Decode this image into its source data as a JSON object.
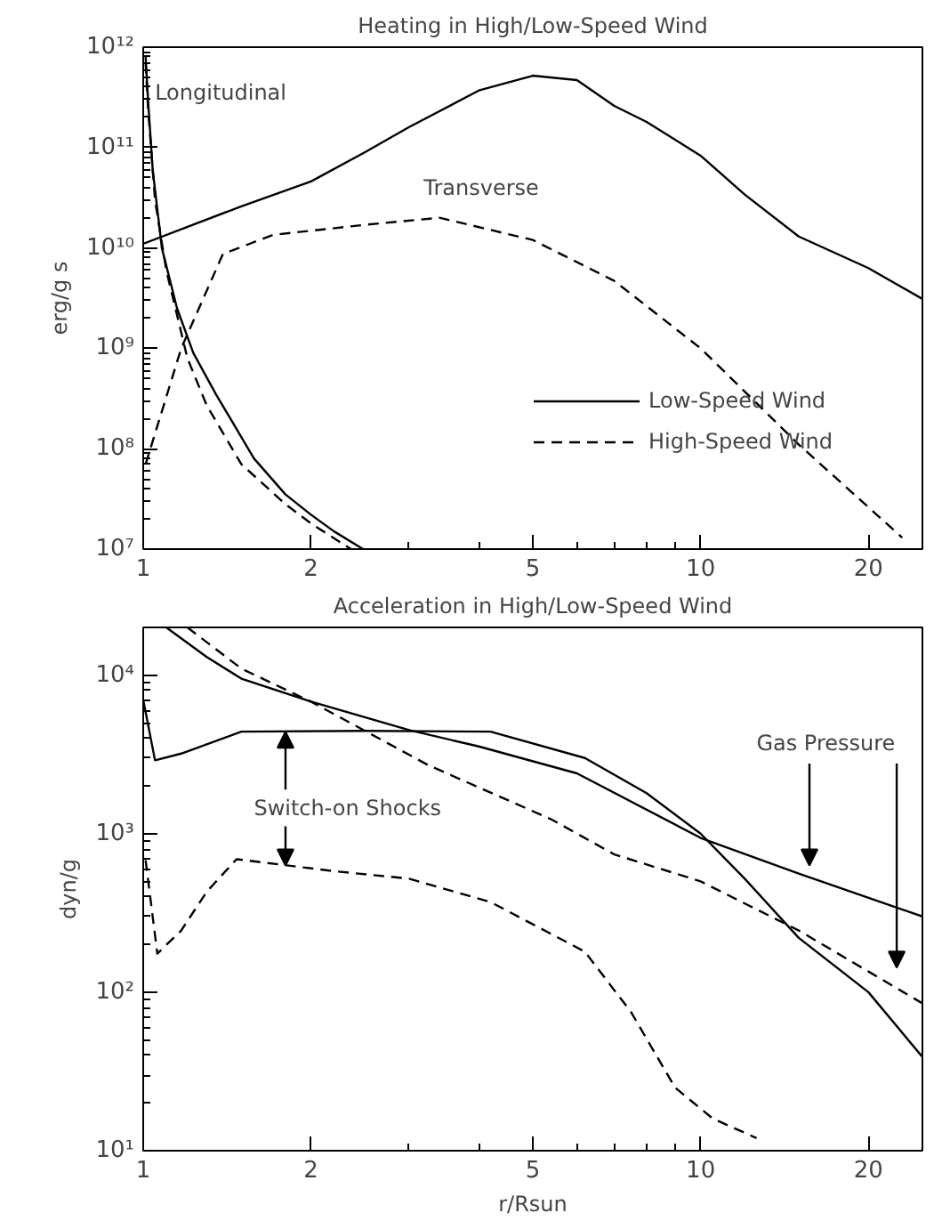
{
  "chart_data": [
    {
      "type": "line",
      "title": "Heating in High/Low-Speed Wind",
      "ylabel": "erg/g s",
      "log": "xy",
      "xlim": [
        1,
        25
      ],
      "ylim": [
        10000000.0,
        1000000000000.0
      ],
      "xticks": [
        1,
        2,
        5,
        10,
        20
      ],
      "yticks": [
        {
          "value": 10000000.0,
          "label": "10⁷"
        },
        {
          "value": 100000000.0,
          "label": "10⁸"
        },
        {
          "value": 1000000000.0,
          "label": "10⁹"
        },
        {
          "value": 10000000000.0,
          "label": "10¹⁰"
        },
        {
          "value": 100000000000.0,
          "label": "10¹¹"
        },
        {
          "value": 1000000000000.0,
          "label": "10¹²"
        }
      ],
      "grid": false,
      "legend": "bottom right",
      "annotations": [
        "Longitudinal",
        "Transverse"
      ],
      "series": [
        {
          "name": "Low-Speed Wind",
          "color": "#000000",
          "line_style": "solid",
          "x": [
            1.01,
            1.02,
            1.04,
            1.08,
            1.15,
            1.23,
            1.35,
            1.58,
            1.8,
            2.0,
            2.2,
            2.48
          ],
          "values": [
            800000000000.0,
            300000000000.0,
            60000000000.0,
            10000000000.0,
            2500000000.0,
            900000000.0,
            350000000.0,
            80000000.0,
            35000000.0,
            22000000.0,
            15000000.0,
            10000000.0
          ]
        },
        {
          "name": "High-Speed Wind",
          "color": "#000000",
          "line_style": "dashed",
          "x": [
            1.01,
            1.02,
            1.05,
            1.1,
            1.2,
            1.3,
            1.5,
            1.8,
            2.0,
            2.36
          ],
          "values": [
            700000000000.0,
            250000000000.0,
            30000000000.0,
            6000000000.0,
            800000000.0,
            270000000.0,
            70000000.0,
            28000000.0,
            18000000.0,
            10000000.0
          ]
        },
        {
          "color": "#000000",
          "line_style": "solid",
          "x": [
            1,
            1.5,
            2,
            2.5,
            3,
            4,
            5,
            6,
            7,
            8,
            10,
            12,
            15,
            20,
            25
          ],
          "values": [
            11000000000.0,
            26000000000.0,
            46000000000.0,
            90000000000.0,
            160000000000.0,
            370000000000.0,
            520000000000.0,
            470000000000.0,
            260000000000.0,
            180000000000.0,
            83000000000.0,
            34000000000.0,
            13000000000.0,
            6300000000.0,
            3100000000.0
          ]
        },
        {
          "color": "#000000",
          "line_style": "dashed",
          "x": [
            1.01,
            1.17,
            1.39,
            1.71,
            2.5,
            3.4,
            5,
            7,
            10,
            15,
            23
          ],
          "values": [
            70000000.0,
            1000000000.0,
            8700000000.0,
            13500000000.0,
            17000000000.0,
            20000000000.0,
            12000000000.0,
            4700000000.0,
            1000000000.0,
            110000000.0,
            13000000.0
          ]
        }
      ]
    },
    {
      "type": "line",
      "title": "Acceleration in High/Low-Speed Wind",
      "xlabel": "r/Rsun",
      "ylabel": "dyn/g",
      "log": "xy",
      "xlim": [
        1,
        25
      ],
      "ylim": [
        10,
        20000.0
      ],
      "xticks": [
        1,
        2,
        5,
        10,
        20
      ],
      "yticks": [
        {
          "value": 10,
          "label": "10¹"
        },
        {
          "value": 100,
          "label": "10²"
        },
        {
          "value": 1000,
          "label": "10³"
        },
        {
          "value": 10000,
          "label": "10⁴"
        }
      ],
      "grid": false,
      "annotations": [
        {
          "text": "Switch-on Shocks",
          "x": 1.8,
          "y": 4400
        },
        "Gas Pressure"
      ],
      "series": [
        {
          "color": "#000000",
          "line_style": "solid",
          "x": [
            1.1,
            1.3,
            1.5,
            2,
            3,
            4,
            6,
            10,
            15,
            25
          ],
          "values": [
            20000,
            13000,
            9500,
            6800,
            4500,
            3550,
            2400,
            940,
            560,
            300
          ]
        },
        {
          "color": "#000000",
          "line_style": "dashed",
          "x": [
            1.2,
            1.5,
            2,
            3.25,
            5.4,
            7,
            10,
            15,
            20,
            25
          ],
          "values": [
            20000,
            11000,
            6800,
            2700,
            1230,
            740,
            500,
            245,
            135,
            85
          ]
        },
        {
          "color": "#000000",
          "line_style": "solid",
          "x": [
            1,
            1.05,
            1.17,
            1.5,
            2.5,
            4.2,
            6.2,
            8,
            10,
            12,
            15,
            20,
            25
          ],
          "values": [
            7000,
            2900,
            3200,
            4400,
            4450,
            4400,
            3000,
            1800,
            1000,
            520,
            220,
            100,
            39
          ]
        },
        {
          "color": "#000000",
          "line_style": "dashed",
          "x": [
            1.01,
            1.06,
            1.17,
            1.3,
            1.47,
            2.2,
            3,
            4.2,
            6.2,
            7.5,
            9,
            10.5,
            12.6
          ],
          "values": [
            680,
            175,
            245,
            430,
            690,
            580,
            520,
            370,
            180,
            75,
            25,
            16,
            12
          ]
        }
      ]
    }
  ]
}
